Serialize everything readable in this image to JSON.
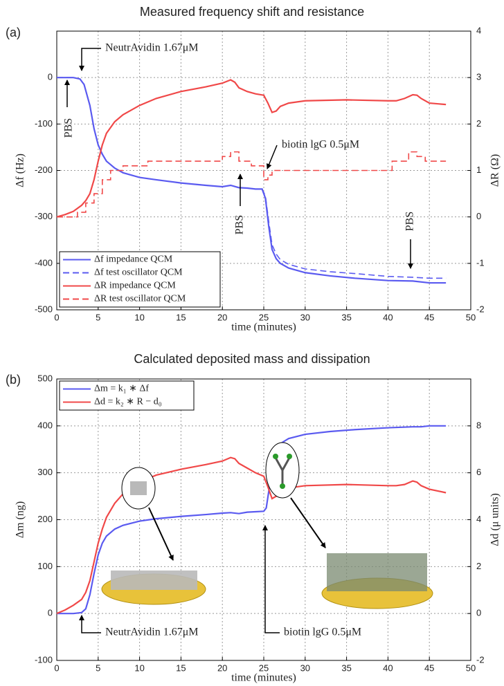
{
  "chart_data": [
    {
      "type": "line",
      "title": "Measured frequency shift and resistance",
      "panel_label": "(a)",
      "xlabel": "time (minutes)",
      "ylabel": "Δf (Hz)",
      "y2label": "ΔR (Ω)",
      "xlim": [
        0,
        50
      ],
      "xticks": [
        0,
        5,
        10,
        15,
        20,
        25,
        30,
        35,
        40,
        45,
        50
      ],
      "ylim": [
        -500,
        100
      ],
      "yticks": [
        -500,
        -400,
        -300,
        -200,
        -100,
        0
      ],
      "y2lim": [
        -2,
        4
      ],
      "y2ticks": [
        -2,
        -1,
        0,
        1,
        2,
        3,
        4
      ],
      "grid": true,
      "legend": "lower left",
      "annotations": [
        "NeutrAvidin 1.67μM",
        "PBS",
        "biotin lgG 0.5μM",
        "PBS",
        "PBS"
      ],
      "series": [
        {
          "name": "Δf impedance QCM",
          "color": "#5a5af0",
          "dash": false,
          "axis": "y",
          "x": [
            0,
            1,
            2,
            2.8,
            3.3,
            4,
            4.5,
            5,
            5.5,
            6,
            7,
            8,
            10,
            12,
            15,
            18,
            20,
            21,
            22,
            23,
            24,
            24.8,
            25.2,
            25.6,
            26,
            26.5,
            27,
            28,
            30,
            33,
            36,
            40,
            43,
            45,
            47
          ],
          "values": [
            0,
            0,
            0,
            -3,
            -15,
            -60,
            -110,
            -145,
            -165,
            -180,
            -195,
            -205,
            -215,
            -220,
            -227,
            -232,
            -235,
            -232,
            -237,
            -238,
            -240,
            -240,
            -260,
            -320,
            -370,
            -390,
            -400,
            -410,
            -420,
            -427,
            -432,
            -437,
            -438,
            -442,
            -442
          ]
        },
        {
          "name": "Δf test oscillator QCM",
          "color": "#5a5af0",
          "dash": true,
          "axis": "y",
          "x": [
            0,
            1,
            2,
            2.8,
            3.3,
            4,
            4.5,
            5,
            5.5,
            6,
            7,
            8,
            10,
            12,
            15,
            18,
            20,
            21,
            22,
            23,
            24,
            24.8,
            25.2,
            25.6,
            26,
            26.5,
            27,
            28,
            30,
            33,
            36,
            40,
            43,
            45,
            47
          ],
          "values": [
            0,
            0,
            0,
            -3,
            -15,
            -60,
            -110,
            -145,
            -165,
            -180,
            -195,
            -205,
            -215,
            -220,
            -227,
            -232,
            -235,
            -232,
            -237,
            -238,
            -240,
            -240,
            -255,
            -310,
            -360,
            -380,
            -392,
            -402,
            -412,
            -418,
            -422,
            -428,
            -430,
            -432,
            -432
          ]
        },
        {
          "name": "ΔR impedance QCM",
          "color": "#f04848",
          "dash": false,
          "axis": "y2",
          "x": [
            0,
            1,
            2,
            3,
            3.5,
            4,
            4.5,
            5,
            5.5,
            6,
            7,
            8,
            10,
            12,
            15,
            18,
            20,
            21,
            21.5,
            22,
            23,
            24,
            25,
            25.5,
            26,
            26.5,
            27,
            28,
            30,
            35,
            40,
            41,
            42,
            43,
            43.5,
            44,
            45,
            47
          ],
          "values": [
            0,
            0.05,
            0.12,
            0.25,
            0.35,
            0.5,
            0.8,
            1.2,
            1.55,
            1.8,
            2.05,
            2.2,
            2.4,
            2.55,
            2.7,
            2.8,
            2.88,
            2.95,
            2.9,
            2.78,
            2.7,
            2.65,
            2.62,
            2.45,
            2.25,
            2.28,
            2.38,
            2.45,
            2.5,
            2.52,
            2.5,
            2.5,
            2.55,
            2.63,
            2.62,
            2.55,
            2.45,
            2.42
          ]
        },
        {
          "name": "ΔR test oscillator QCM",
          "color": "#f04848",
          "dash": true,
          "axis": "y2",
          "x": [
            0,
            2.5,
            2.5,
            3.5,
            3.5,
            4.5,
            4.5,
            5.5,
            5.5,
            6.5,
            6.5,
            8,
            8,
            11,
            11,
            20,
            20,
            21,
            21,
            22,
            22,
            23.5,
            23.5,
            25,
            25,
            25.5,
            25.5,
            26,
            26,
            40.5,
            40.5,
            42.5,
            42.5,
            43.5,
            43.5,
            44.5,
            44.5,
            47
          ],
          "values": [
            0,
            0,
            0.1,
            0.1,
            0.3,
            0.3,
            0.5,
            0.5,
            0.8,
            0.8,
            1.0,
            1.0,
            1.1,
            1.1,
            1.2,
            1.2,
            1.3,
            1.3,
            1.4,
            1.4,
            1.2,
            1.2,
            1.1,
            1.1,
            0.8,
            0.8,
            0.9,
            0.9,
            1.0,
            1.0,
            1.2,
            1.2,
            1.4,
            1.4,
            1.3,
            1.3,
            1.2,
            1.2
          ]
        }
      ]
    },
    {
      "type": "line",
      "title": "Calculated deposited mass and dissipation",
      "panel_label": "(b)",
      "xlabel": "time (minutes)",
      "ylabel": "Δm (ng)",
      "y2label": "Δd (μ units)",
      "xlim": [
        0,
        50
      ],
      "xticks": [
        0,
        5,
        10,
        15,
        20,
        25,
        30,
        35,
        40,
        45,
        50
      ],
      "ylim": [
        -100,
        500
      ],
      "yticks": [
        -100,
        0,
        100,
        200,
        300,
        400,
        500
      ],
      "y2lim": [
        -2,
        10
      ],
      "y2ticks": [
        -2,
        0,
        2,
        4,
        6,
        8
      ],
      "grid": true,
      "legend": "upper left",
      "annotations": [
        "NeutrAvidin 1.67μM",
        "biotin lgG 0.5μM"
      ],
      "series": [
        {
          "name": "Δm = k₁ ∗ Δf",
          "color": "#5a5af0",
          "dash": false,
          "axis": "y",
          "x": [
            0,
            1,
            2,
            3,
            3.5,
            4,
            4.5,
            5,
            5.5,
            6,
            7,
            8,
            10,
            12,
            15,
            18,
            20,
            21,
            22,
            23,
            24,
            25,
            25.3,
            25.6,
            26,
            26.5,
            27,
            28,
            30,
            33,
            36,
            40,
            43,
            44,
            45,
            47
          ],
          "values": [
            0,
            0,
            0,
            2,
            10,
            40,
            85,
            125,
            150,
            165,
            180,
            188,
            197,
            202,
            207,
            211,
            214,
            215,
            213,
            216,
            217,
            218,
            225,
            260,
            310,
            345,
            362,
            373,
            382,
            388,
            392,
            396,
            398,
            398,
            400,
            400
          ]
        },
        {
          "name": "Δd = k₂ ∗ R − d₀",
          "color": "#f04848",
          "dash": false,
          "axis": "y2",
          "x": [
            0,
            1,
            2,
            3,
            3.5,
            4,
            4.5,
            5,
            5.5,
            6,
            7,
            8,
            10,
            12,
            15,
            18,
            20,
            21,
            21.5,
            22,
            23,
            24,
            25,
            25.5,
            26,
            26.5,
            27,
            28,
            30,
            35,
            40,
            41,
            42,
            43,
            43.5,
            44,
            45,
            47
          ],
          "values": [
            0,
            0.15,
            0.35,
            0.6,
            0.9,
            1.4,
            2.2,
            3.0,
            3.6,
            4.1,
            4.7,
            5.1,
            5.6,
            5.9,
            6.15,
            6.35,
            6.5,
            6.65,
            6.6,
            6.4,
            6.2,
            6.0,
            5.85,
            5.4,
            4.9,
            5.0,
            5.2,
            5.35,
            5.45,
            5.5,
            5.45,
            5.45,
            5.5,
            5.65,
            5.6,
            5.45,
            5.3,
            5.15
          ]
        }
      ]
    }
  ]
}
